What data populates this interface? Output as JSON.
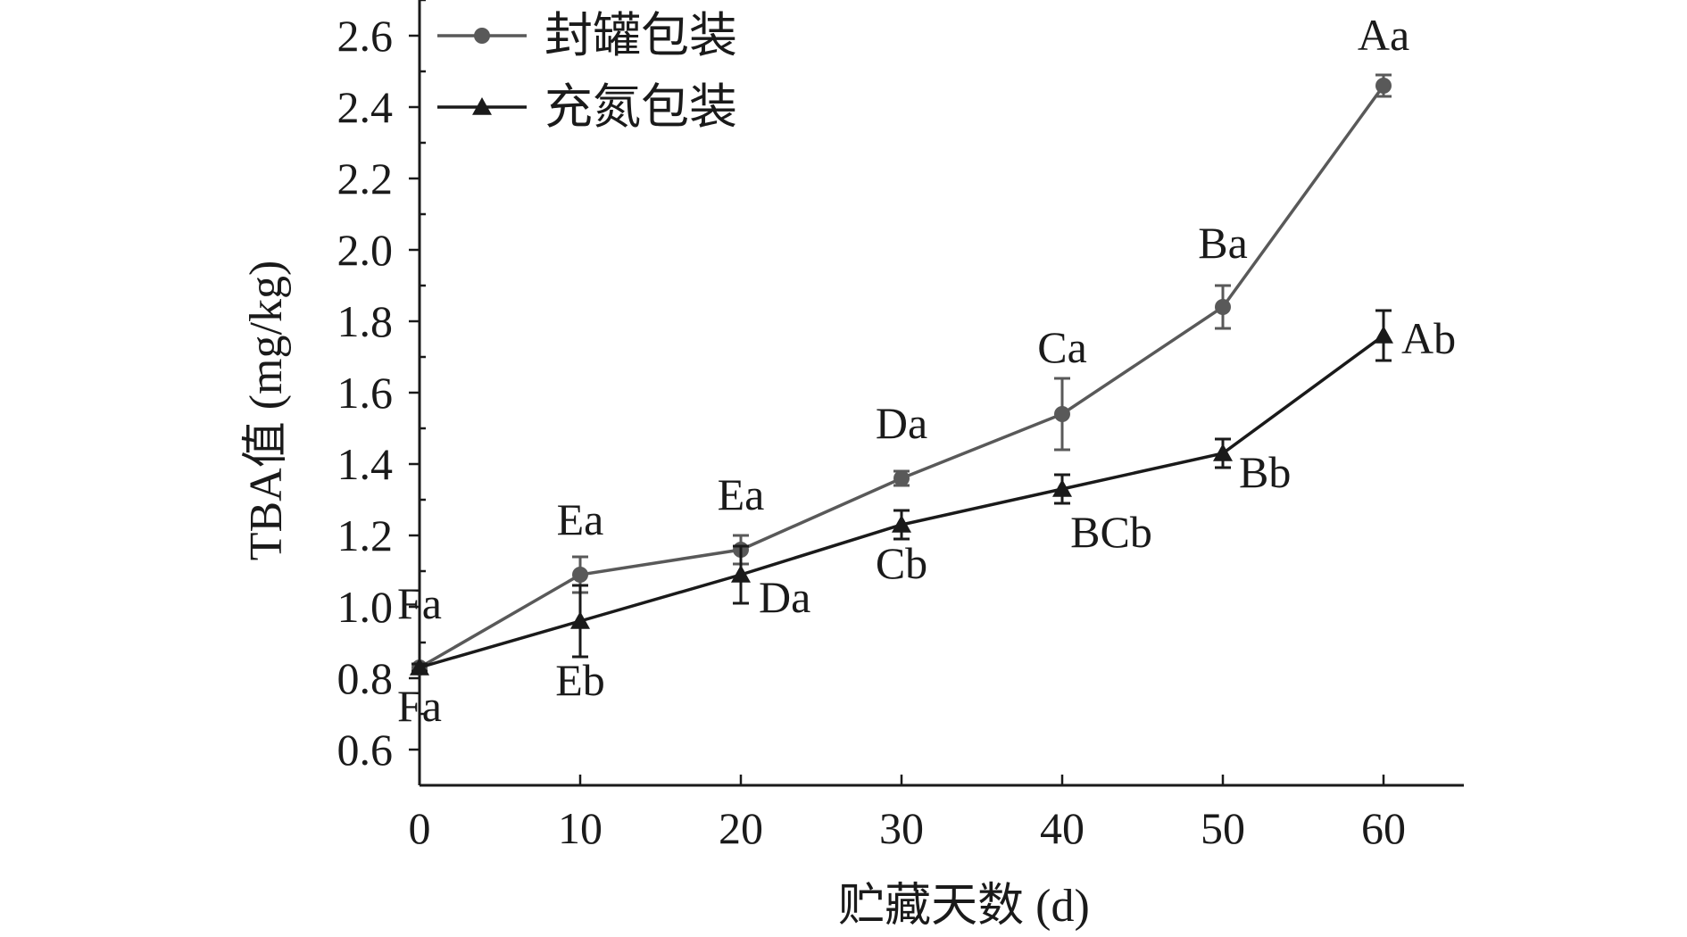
{
  "chart_data": {
    "type": "line",
    "xlabel": "贮藏天数 (d)",
    "ylabel": "TBA值 (mg/kg)",
    "xlim": [
      0,
      65
    ],
    "ylim": [
      0.5,
      2.7
    ],
    "x": [
      0,
      10,
      20,
      30,
      40,
      50,
      60
    ],
    "xticks": [
      0,
      10,
      20,
      30,
      40,
      50,
      60
    ],
    "yticks": [
      0.6,
      0.8,
      1.0,
      1.2,
      1.4,
      1.6,
      1.8,
      2.0,
      2.2,
      2.4,
      2.6
    ],
    "ytick_labels": [
      "0.6",
      "0.8",
      "1.0",
      "1.2",
      "1.4",
      "1.6",
      "1.8",
      "2.0",
      "2.2",
      "2.4",
      "2.6"
    ],
    "legend_position": "top-left",
    "grid": false,
    "series": [
      {
        "name": "封罐包装",
        "marker": "circle",
        "color": "#595959",
        "values": [
          0.83,
          1.09,
          1.16,
          1.36,
          1.54,
          1.84,
          2.46
        ],
        "errors": [
          0.01,
          0.05,
          0.04,
          0.02,
          0.1,
          0.06,
          0.03
        ],
        "labels": [
          "Fa",
          "Ea",
          "Ea",
          "Da",
          "Ca",
          "Ba",
          "Aa"
        ]
      },
      {
        "name": "充氮包装",
        "marker": "triangle",
        "color": "#1a1a1a",
        "values": [
          0.83,
          0.96,
          1.09,
          1.23,
          1.33,
          1.43,
          1.76
        ],
        "errors": [
          0.01,
          0.1,
          0.08,
          0.04,
          0.04,
          0.04,
          0.07
        ],
        "labels": [
          "Fa",
          "Eb",
          "Da",
          "Cb",
          "BCb",
          "Bb",
          "Ab"
        ]
      }
    ]
  }
}
